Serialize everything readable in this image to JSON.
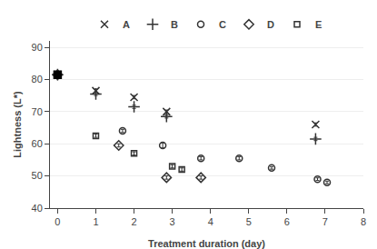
{
  "chart_data": {
    "type": "scatter",
    "xlabel": "Treatment duration (day)",
    "ylabel": "Lightness (L*)",
    "xlim": [
      -0.2,
      8
    ],
    "ylim": [
      40,
      92
    ],
    "xticks": [
      0,
      1,
      2,
      3,
      4,
      5,
      6,
      7,
      8
    ],
    "yticks": [
      40,
      50,
      60,
      70,
      80,
      90
    ],
    "grid": "y",
    "legend": "top",
    "series": [
      {
        "name": "A",
        "color": "#333333",
        "marker": "x",
        "x": [
          0,
          1,
          2,
          2.85,
          6.75
        ],
        "values": [
          81.5,
          76.5,
          74.5,
          70.0,
          66.0
        ],
        "yerr": [
          0.4,
          0.5,
          0.5,
          0.5,
          0.5
        ]
      },
      {
        "name": "B",
        "color": "#333333",
        "marker": "plus",
        "x": [
          0,
          1,
          2,
          2.85,
          6.75
        ],
        "values": [
          81.5,
          75.5,
          71.5,
          68.5,
          61.5
        ],
        "yerr": [
          0.4,
          0.5,
          0.5,
          0.5,
          0.5
        ]
      },
      {
        "name": "C",
        "color": "#333333",
        "marker": "circle",
        "x": [
          0,
          1.7,
          2.75,
          3.75,
          4.75,
          5.6,
          6.8,
          7.05
        ],
        "values": [
          81.5,
          64.0,
          59.5,
          55.5,
          55.5,
          52.5,
          49.0,
          48.0
        ],
        "yerr": [
          0.4,
          0.5,
          0.8,
          0.5,
          0.5,
          0.4,
          0.4,
          0.4
        ]
      },
      {
        "name": "D",
        "color": "#333333",
        "marker": "diamond",
        "x": [
          0,
          1.6,
          2.85,
          3.75
        ],
        "values": [
          81.5,
          59.5,
          49.5,
          49.5
        ],
        "yerr": [
          0.4,
          0.5,
          0.5,
          0.5
        ]
      },
      {
        "name": "E",
        "color": "#333333",
        "marker": "square",
        "x": [
          0,
          1,
          2,
          3.0,
          3.25
        ],
        "values": [
          81.5,
          62.5,
          57.0,
          53.0,
          52.0
        ],
        "yerr": [
          0.4,
          0.5,
          0.5,
          0.5,
          0.5
        ]
      },
      {
        "color": "#000000",
        "marker": "filled_square",
        "x": [
          0
        ],
        "values": [
          81.5
        ]
      }
    ]
  }
}
